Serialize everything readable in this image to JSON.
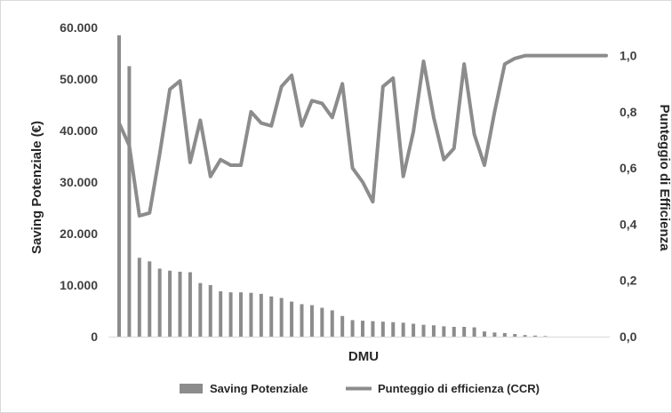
{
  "chart_data": {
    "type": "bar+line",
    "xlabel": "DMU",
    "y_left_label": "Saving Potenziale (€)",
    "y_right_label": "Punteggio di Efficienza",
    "y_left_ticks": [
      "0",
      "10.000",
      "20.000",
      "30.000",
      "40.000",
      "50.000",
      "60.000"
    ],
    "y_right_ticks": [
      "0,0",
      "0,2",
      "0,4",
      "0,6",
      "0,8",
      "1,0"
    ],
    "y_left_range": [
      0,
      60000
    ],
    "y_right_range": [
      0,
      1.1
    ],
    "grid": false,
    "legend_position": "bottom",
    "series": [
      {
        "name": "Saving Potenziale",
        "kind": "bar",
        "color": "#8c8c8c",
        "values": [
          58500,
          52500,
          15300,
          14600,
          13200,
          12800,
          12600,
          12500,
          10400,
          10000,
          8800,
          8600,
          8600,
          8500,
          8300,
          7800,
          7500,
          6800,
          6300,
          6100,
          5600,
          5100,
          4000,
          3200,
          3100,
          3000,
          2900,
          2800,
          2700,
          2500,
          2300,
          2200,
          2000,
          1900,
          1900,
          1800,
          1000,
          800,
          700,
          500,
          300,
          200,
          100,
          0,
          0,
          0,
          0,
          0,
          0
        ]
      },
      {
        "name": "Punteggio di efficienza (CCR)",
        "kind": "line",
        "color": "#8c8c8c",
        "values": [
          0.76,
          0.68,
          0.43,
          0.44,
          0.65,
          0.88,
          0.91,
          0.62,
          0.77,
          0.57,
          0.63,
          0.61,
          0.61,
          0.8,
          0.76,
          0.75,
          0.89,
          0.93,
          0.75,
          0.84,
          0.83,
          0.78,
          0.9,
          0.6,
          0.55,
          0.48,
          0.89,
          0.92,
          0.57,
          0.73,
          0.98,
          0.78,
          0.63,
          0.67,
          0.97,
          0.72,
          0.61,
          0.8,
          0.97,
          0.99,
          1.0,
          1.0,
          1.0,
          1.0,
          1.0,
          1.0,
          1.0,
          1.0,
          1.0
        ]
      }
    ]
  }
}
